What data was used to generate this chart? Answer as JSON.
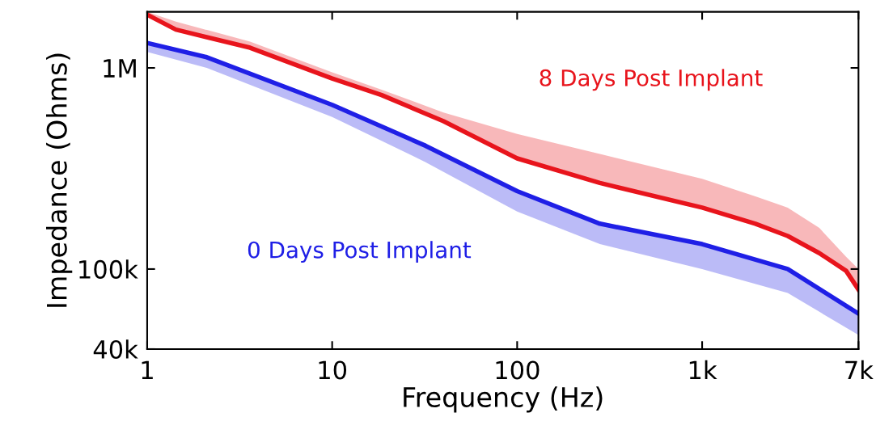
{
  "chart_data": {
    "type": "line",
    "xlabel": "Frequency (Hz)",
    "ylabel": "Impedance (Ohms)",
    "log": "xy",
    "xlim": [
      1,
      7000
    ],
    "xticks": [
      1,
      10,
      {
        "value": 100,
        "label": "100"
      },
      {
        "value": 1000,
        "label": "1k"
      },
      {
        "value": 7000,
        "label": "7k"
      }
    ],
    "ylim": [
      40000,
      1900000
    ],
    "yticks": [
      {
        "value": 40000,
        "label": "40k"
      },
      {
        "value": 100000,
        "label": "100k"
      },
      {
        "value": 1000000,
        "label": "1M"
      }
    ],
    "grid": false,
    "series": [
      {
        "name": "8 Days Post Implant",
        "color": "#e8141c",
        "x": [
          1,
          1.43,
          3.6,
          10,
          18.5,
          40,
          100,
          280,
          1000,
          1940,
          2900,
          4300,
          6000,
          7000
        ],
        "values": [
          1840000,
          1550000,
          1260000,
          885000,
          733000,
          543000,
          355000,
          268000,
          202000,
          168000,
          146000,
          120000,
          98000,
          79000
        ],
        "lower": [
          1840000,
          1550000,
          1260000,
          885000,
          733000,
          543000,
          355000,
          268000,
          202000,
          168000,
          146000,
          120000,
          98000,
          79000
        ],
        "upper": [
          1900000,
          1700000,
          1350000,
          950000,
          780000,
          600000,
          470000,
          373000,
          281000,
          230000,
          202000,
          160000,
          115000,
          100000
        ]
      },
      {
        "name": "0 Days Post Implant",
        "color": "#1f1fe6",
        "x": [
          1,
          2.1,
          10,
          32,
          100,
          280,
          1000,
          2900,
          7000
        ],
        "values": [
          1330000,
          1130000,
          655000,
          410000,
          244000,
          168000,
          133000,
          100000,
          60000
        ],
        "lower": [
          1200000,
          1000000,
          570000,
          340000,
          193000,
          133000,
          100000,
          76000,
          47000
        ],
        "upper": [
          1330000,
          1130000,
          655000,
          410000,
          244000,
          168000,
          133000,
          100000,
          60000
        ]
      }
    ]
  }
}
